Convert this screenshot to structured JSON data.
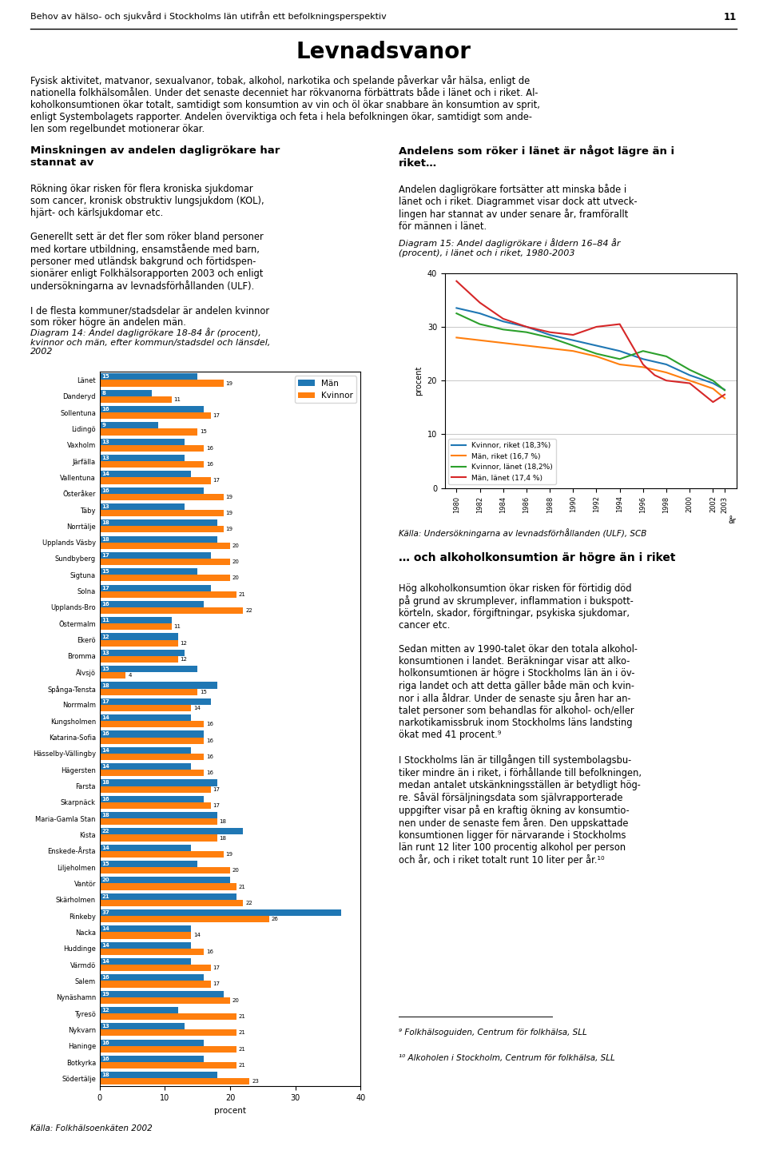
{
  "title": "Levnadsvanor",
  "annotations": [
    "Behov av hälso- och sjukvård i Stockholms län utifrån ett befolkningsperspektiv",
    "11",
    "Fysisk aktivitet, matvanor, sexualvanor, tobak, alkohol, narkotika och spelande påverkar vår hälsa, enligt de\nnationella folkhälsomålen. Under det senaste decenniet har rökvanorna förbättrats både i länet och i riket. Al-\nkoholkonsumtionen ökar totalt, samtidigt som konsumtion av vin och öl ökar snabbare än konsumtion av sprit,\nenligt Systembolagets rapporter. Andelen överviktiga och feta i hela befolkningen ökar, samtidigt som ande-\nlen som regelbundet motionerar ökar.",
    "Minskningen av andelen dagligrökare har\nstannat av",
    "Rökning ökar risken för flera kroniska sjukdomar\nsom cancer, kronisk obstruktiv lungsjukdom (KOL),\nhjärt- och kärlsjukdomar etc.\n\nGenerellt sett är det fler som röker bland personer\nmed kortare utbildning, ensamstående med barn,\npersoner med utländsk bakgrund och förtidspen-\nsionärer enligt Folkhälsorapporten 2003 och enligt\nundersökningarna av levnadsförhållanden (ULF).\n\nI de flesta kommuner/stadsdelar är andelen kvinnor\nsom röker högre än andelen män.",
    "Andelens som röker i länet är något lägre än i\nriket…",
    "Andelen dagligrökare fortsätter att minska både i\nlänet och i riket. Diagrammet visar dock att utveck-\nlingen har stannat av under senare år, framförallt\nför männen i länet.",
    "… och alkoholkonsumtion är högre än i riket",
    "Hög alkoholkonsumtion ökar risken för förtidig död\npå grund av skrumplever, inflammation i bukspott-\nkörteln, skador, förgiftningar, psykiska sjukdomar,\ncancer etc.\n\nSedan mitten av 1990-talet ökar den totala alkohol-\nkonsumtionen i landet. Beräkningar visar att alko-\nholkonsumtionen är högre i Stockholms län än i öv-\nriga landet och att detta gäller både män och kvin-\nnor i alla åldrar. Under de senaste sju åren har an-\ntalet personer som behandlas för alkohol- och/eller\nnarkotikamissbruk inom Stockholms läns landsting\nökat med 41 procent.⁹\n\nI Stockholms län är tillgången till systembolagsbu-\ntiker mindre än i riket, i förhållande till befolkningen,\nmedan antalet utskänkningsställen är betydligt hög-\nre. Såväl försäljningsdata som självrapporterade\nuppgifter visar på en kraftig ökning av konsumtio-\nnen under de senaste fem åren. Den uppskattade\nkonsumtionen ligger för närvarande i Stockholms\nlän runt 12 liter 100 procentig alkohol per person\noch år, och i riket totalt runt 10 liter per år.¹⁰",
    "⁹ Folkhälsoguiden, Centrum för folkhälsa, SLL",
    "¹⁰ Alkoholen i Stockholm, Centrum för folkhälsa, SLL"
  ],
  "chart_data": [
    {
      "type": "bar",
      "orientation": "horizontal",
      "title": "Diagram 14: Andel dagligrökare 18-84 år (procent),\nkvinnor och män, efter kommun/stadsdel och länsdel,\n2002",
      "categories": [
        "Länet",
        "Danderyd",
        "Sollentuna",
        "Lidingö",
        "Vaxholm",
        "Järfälla",
        "Vallentuna",
        "Österåker",
        "Täby",
        "Norrtälje",
        "Upplands Väsby",
        "Sundbyberg",
        "Sigtuna",
        "Solna",
        "Upplands-Bro",
        "Östermalm",
        "Ekerö",
        "Bromma",
        "Älvsjö",
        "Spånga-Tensta",
        "Norrmalm",
        "Kungsholmen",
        "Katarina-Sofia",
        "Hässelby-Vällingby",
        "Hägersten",
        "Farsta",
        "Skarpnäck",
        "Maria-Gamla Stan",
        "Kista",
        "Enskede-Årsta",
        "Liljeholmen",
        "Vantör",
        "Skärholmen",
        "Rinkeby",
        "Nacka",
        "Huddinge",
        "Värmdö",
        "Salem",
        "Nynäshamn",
        "Tyresö",
        "Nykvarn",
        "Haninge",
        "Botkyrka",
        "Södertälje"
      ],
      "series": [
        {
          "name": "Män",
          "values": [
            15,
            8,
            16,
            9,
            13,
            13,
            14,
            16,
            13,
            18,
            18,
            17,
            15,
            17,
            16,
            11,
            12,
            13,
            15,
            18,
            17,
            14,
            16,
            14,
            14,
            18,
            16,
            18,
            22,
            14,
            15,
            20,
            21,
            37,
            14,
            14,
            14,
            16,
            19,
            12,
            13,
            16,
            16,
            18
          ]
        },
        {
          "name": "Kvinnor",
          "values": [
            19,
            11,
            17,
            15,
            16,
            16,
            17,
            19,
            19,
            19,
            20,
            20,
            20,
            21,
            22,
            11,
            12,
            12,
            4,
            15,
            14,
            16,
            16,
            16,
            16,
            17,
            17,
            18,
            18,
            19,
            20,
            21,
            22,
            26,
            14,
            16,
            17,
            17,
            20,
            21,
            21,
            21,
            21,
            23
          ]
        }
      ],
      "xlabel": "procent",
      "xlim": [
        0,
        40
      ],
      "xticks": [
        0,
        10,
        20,
        30,
        40
      ],
      "data_labels": true,
      "legend": "upper right",
      "annotations": [
        "Källa: Folkhälsoenkäten 2002"
      ]
    },
    {
      "type": "line",
      "title": "Diagram 15: Andel dagligrökare i åldern 16–84 år\n(procent), i länet och i riket, 1980-2003",
      "x": [
        1980,
        1982,
        1984,
        1986,
        1988,
        1990,
        1992,
        1994,
        1996,
        1997,
        1998,
        2000,
        2002,
        2003
      ],
      "series": [
        {
          "name": "Kvinnor, riket (18,3%)",
          "values": [
            33.5,
            32.5,
            31.0,
            30.0,
            28.5,
            27.5,
            26.5,
            25.5,
            24.0,
            23.5,
            23.0,
            21.0,
            19.5,
            18.3
          ]
        },
        {
          "name": "Män, riket (16,7 %)",
          "values": [
            28.0,
            27.5,
            27.0,
            26.5,
            26.0,
            25.5,
            24.5,
            23.0,
            22.5,
            22.0,
            21.5,
            20.0,
            18.5,
            16.7
          ]
        },
        {
          "name": "Kvinnor, länet (18,2%)",
          "values": [
            32.5,
            30.5,
            29.5,
            29.0,
            28.0,
            26.5,
            25.0,
            24.0,
            25.5,
            25.0,
            24.5,
            22.0,
            20.0,
            18.2
          ]
        },
        {
          "name": "Män, länet (17,4 %)",
          "values": [
            38.5,
            34.5,
            31.5,
            30.0,
            29.0,
            28.5,
            30.0,
            30.5,
            23.0,
            21.0,
            20.0,
            19.5,
            16.0,
            17.4
          ]
        }
      ],
      "xlabel": "år",
      "ylabel": "procent",
      "xlim": [
        1979,
        2004
      ],
      "xticks": [
        1980,
        1982,
        1984,
        1986,
        1988,
        1990,
        1992,
        1994,
        1996,
        1998,
        2000,
        2002,
        2003
      ],
      "ylim": [
        0,
        40
      ],
      "yticks": [
        0,
        10,
        20,
        30,
        40
      ],
      "grid": "y",
      "legend": "lower left",
      "annotations": [
        "Källa: Undersökningarna av levnadsförhållanden (ULF), SCB"
      ]
    }
  ]
}
